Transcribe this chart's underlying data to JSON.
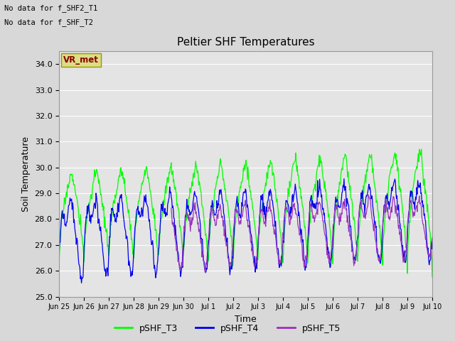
{
  "title": "Peltier SHF Temperatures",
  "xlabel": "Time",
  "ylabel": "Soil Temperature",
  "ylim": [
    25.0,
    34.5
  ],
  "yticks": [
    25.0,
    26.0,
    27.0,
    28.0,
    29.0,
    30.0,
    31.0,
    32.0,
    33.0,
    34.0
  ],
  "xtick_labels": [
    "Jun 25",
    "Jun 26",
    "Jun 27",
    "Jun 28",
    "Jun 29",
    "Jun 30",
    "Jul 1",
    "Jul 2",
    "Jul 3",
    "Jul 4",
    "Jul 5",
    "Jul 6",
    "Jul 7",
    "Jul 8",
    "Jul 9",
    "Jul 10"
  ],
  "legend_labels": [
    "pSHF_T3",
    "pSHF_T4",
    "pSHF_T5"
  ],
  "legend_colors": [
    "#00FF00",
    "#0000EE",
    "#9933BB"
  ],
  "no_data_text": [
    "No data for f_SHF2_T1",
    "No data for f_SHF_T2"
  ],
  "vr_met_label": "VR_met",
  "vr_met_color": "#DDDD88",
  "vr_met_text_color": "#880000",
  "bg_color": "#D8D8D8",
  "plot_bg": "#E4E4E4",
  "grid_color": "#FFFFFF",
  "title_fontsize": 11,
  "axis_fontsize": 9,
  "tick_fontsize": 8,
  "legend_fontsize": 9
}
